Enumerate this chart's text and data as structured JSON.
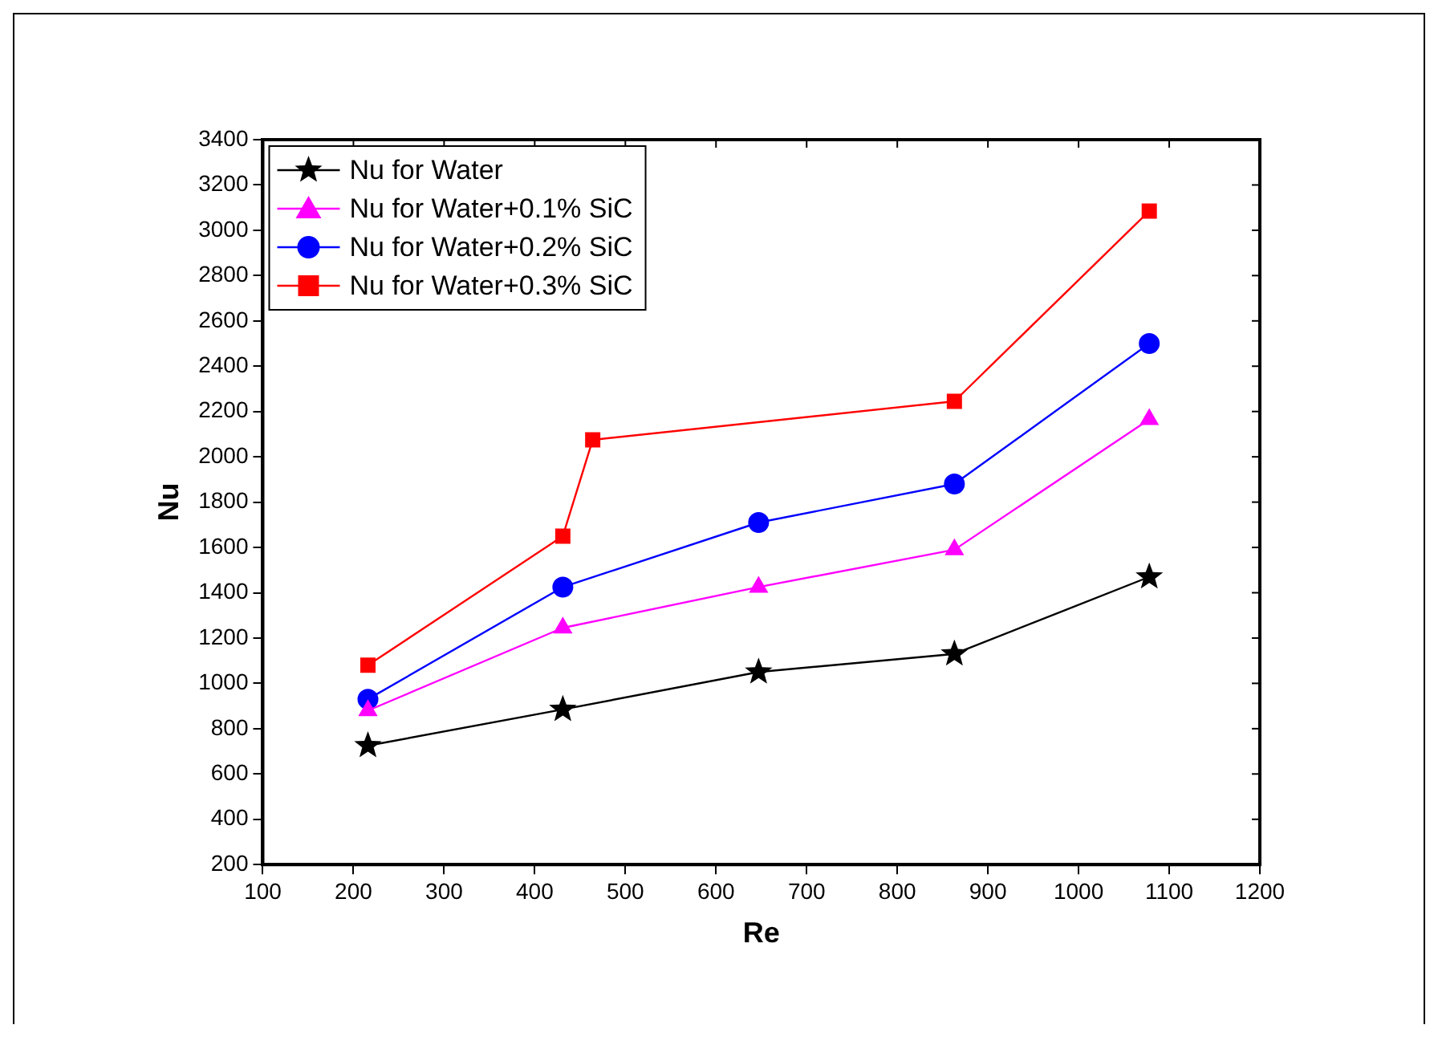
{
  "chart_data": {
    "type": "line",
    "xlabel": "Re",
    "ylabel": "Nu",
    "xlim": [
      100,
      1200
    ],
    "xticks": [
      100,
      200,
      300,
      400,
      500,
      600,
      700,
      800,
      900,
      1000,
      1100,
      1200
    ],
    "ylim": [
      200,
      3400
    ],
    "yticks": [
      200,
      400,
      600,
      800,
      1000,
      1200,
      1400,
      1600,
      1800,
      2000,
      2200,
      2400,
      2600,
      2800,
      3000,
      3200,
      3400
    ],
    "grid": false,
    "legend": "top left",
    "series": [
      {
        "name": "Nu for Water",
        "color": "#000000",
        "marker": "star",
        "x": [
          216,
          431,
          647,
          863,
          1078
        ],
        "values": [
          725,
          885,
          1050,
          1130,
          1470
        ]
      },
      {
        "name": "Nu for Water+0.1% SiC",
        "color": "#ff00ff",
        "marker": "triangle",
        "x": [
          216,
          431,
          647,
          863,
          1078
        ],
        "values": [
          880,
          1245,
          1425,
          1590,
          2165
        ]
      },
      {
        "name": "Nu for Water+0.2% SiC",
        "color": "#0000ff",
        "marker": "circle",
        "x": [
          216,
          431,
          647,
          863,
          1078
        ],
        "values": [
          930,
          1425,
          1710,
          1880,
          2500
        ]
      },
      {
        "name": "Nu for Water+0.3% SiC",
        "color": "#ff0000",
        "marker": "square",
        "x": [
          216,
          431,
          464,
          863,
          1078
        ],
        "values": [
          1080,
          1650,
          2075,
          2245,
          3085
        ]
      }
    ]
  }
}
